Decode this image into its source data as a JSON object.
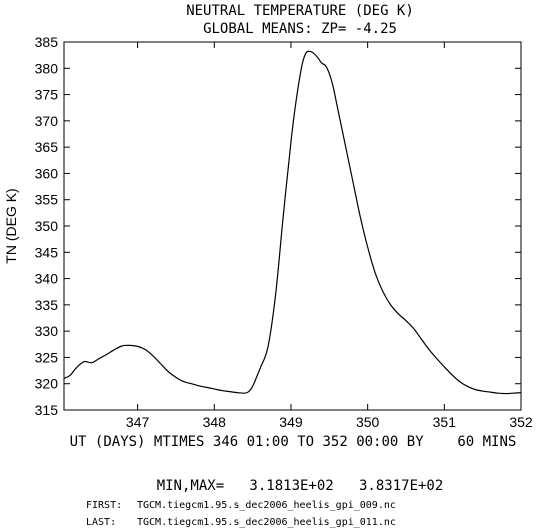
{
  "header": {
    "title": "NEUTRAL TEMPERATURE (DEG K)",
    "subtitle": "GLOBAL MEANS: ZP= -4.25"
  },
  "footer": {
    "minmax": "MIN,MAX=   3.1813E+02   3.8317E+02",
    "first_label": "FIRST:",
    "first_file": "TGCM.tiegcm1.95.s_dec2006_heelis_gpi_009.nc",
    "last_label": "LAST:",
    "last_file": "TGCM.tiegcm1.95.s_dec2006_heelis_gpi_011.nc"
  },
  "chart_data": {
    "type": "line",
    "title": "NEUTRAL TEMPERATURE (DEG K)",
    "subtitle": "GLOBAL MEANS: ZP= -4.25",
    "xlabel": "UT (DAYS) MTIMES 346 01:00 TO 352 00:00 BY    60 MINS",
    "ylabel": "TN (DEG K)",
    "xlim": [
      346.04,
      352.0
    ],
    "ylim": [
      315,
      385
    ],
    "xticks": [
      347,
      348,
      349,
      350,
      351,
      352
    ],
    "xtick_labels": [
      "347",
      "348",
      "349",
      "350",
      "351",
      "352"
    ],
    "yticks": [
      315,
      320,
      325,
      330,
      335,
      340,
      345,
      350,
      355,
      360,
      365,
      370,
      375,
      380,
      385
    ],
    "ytick_labels": [
      "315",
      "320",
      "325",
      "330",
      "335",
      "340",
      "345",
      "350",
      "355",
      "360",
      "365",
      "370",
      "375",
      "380",
      "385"
    ],
    "grid": false,
    "legend": "none",
    "line_color": "#000000",
    "series": [
      {
        "x": [
          346.04,
          346.12,
          346.2,
          346.3,
          346.4,
          346.5,
          346.6,
          346.7,
          346.8,
          346.9,
          347.0,
          347.1,
          347.2,
          347.3,
          347.4,
          347.5,
          347.6,
          347.7,
          347.8,
          347.9,
          348.0,
          348.1,
          348.2,
          348.3,
          348.4,
          348.45,
          348.5,
          348.55,
          348.6,
          348.7,
          348.8,
          348.9,
          349.0,
          349.05,
          349.1,
          349.15,
          349.2,
          349.25,
          349.3,
          349.35,
          349.4,
          349.45,
          349.5,
          349.55,
          349.6,
          349.7,
          349.8,
          349.9,
          350.0,
          350.1,
          350.2,
          350.3,
          350.4,
          350.5,
          350.6,
          350.7,
          350.8,
          350.9,
          351.0,
          351.1,
          351.2,
          351.3,
          351.4,
          351.5,
          351.6,
          351.7,
          351.8,
          351.9,
          352.0
        ],
        "y": [
          321.0,
          321.6,
          323.0,
          324.2,
          324.0,
          324.8,
          325.6,
          326.5,
          327.2,
          327.3,
          327.1,
          326.5,
          325.3,
          323.8,
          322.3,
          321.2,
          320.4,
          320.0,
          319.6,
          319.3,
          319.0,
          318.7,
          318.5,
          318.3,
          318.2,
          318.5,
          319.5,
          321.2,
          323.0,
          327.0,
          337.0,
          352.0,
          366.0,
          372.0,
          377.0,
          381.0,
          383.0,
          383.2,
          382.8,
          382.0,
          381.0,
          380.5,
          379.0,
          376.5,
          373.0,
          366.0,
          359.0,
          352.0,
          346.0,
          341.0,
          337.5,
          335.0,
          333.3,
          332.0,
          330.5,
          328.5,
          326.5,
          324.8,
          323.2,
          321.7,
          320.4,
          319.5,
          318.9,
          318.6,
          318.4,
          318.2,
          318.13,
          318.2,
          318.3
        ]
      }
    ]
  }
}
